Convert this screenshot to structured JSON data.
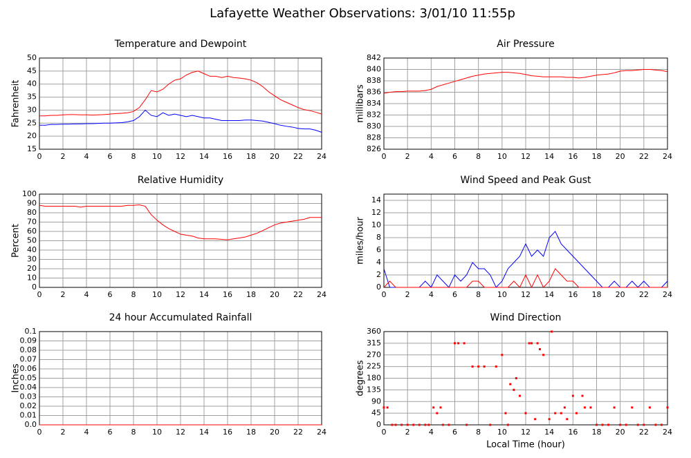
{
  "title": "Lafayette Weather Observations: 3/01/10 11:55p",
  "chart_data": [
    {
      "type": "line",
      "title": "Temperature and Dewpoint",
      "ylabel": "Fahrenheit",
      "x": [
        0,
        0.5,
        1,
        1.5,
        2,
        2.5,
        3,
        3.5,
        4,
        4.5,
        5,
        5.5,
        6,
        6.5,
        7,
        7.5,
        8,
        8.5,
        9,
        9.5,
        10,
        10.5,
        11,
        11.5,
        12,
        12.5,
        13,
        13.5,
        14,
        14.5,
        15,
        15.5,
        16,
        16.5,
        17,
        17.5,
        18,
        18.5,
        19,
        19.5,
        20,
        20.5,
        21,
        21.5,
        22,
        22.5,
        23,
        23.5,
        24
      ],
      "series": [
        {
          "color": "#ff0000",
          "values": [
            27.8,
            27.8,
            28,
            28,
            28.2,
            28.3,
            28.3,
            28.2,
            28.2,
            28.1,
            28.2,
            28.3,
            28.5,
            28.7,
            28.8,
            29,
            29.5,
            31,
            34,
            37.5,
            37,
            38,
            40,
            41.5,
            42,
            43.5,
            44.5,
            45,
            44,
            43,
            43,
            42.5,
            43,
            42.5,
            42.3,
            42,
            41.5,
            40.5,
            39,
            37,
            35.5,
            34,
            33,
            32,
            31,
            30.2,
            29.8,
            29.2,
            28.5
          ]
        },
        {
          "color": "#0000ff",
          "values": [
            24.2,
            24.2,
            24.5,
            24.5,
            24.6,
            24.6,
            24.7,
            24.7,
            24.8,
            24.8,
            24.9,
            25,
            25,
            25.1,
            25.2,
            25.5,
            26,
            27.5,
            30,
            28,
            27.5,
            29,
            28,
            28.5,
            28,
            27.5,
            28,
            27.5,
            27,
            27,
            26.5,
            26,
            26,
            26,
            26,
            26.2,
            26.2,
            26,
            25.8,
            25.3,
            24.8,
            24.2,
            23.8,
            23.5,
            23,
            22.8,
            22.8,
            22.3,
            21.5
          ]
        }
      ],
      "xlim": [
        0,
        24
      ],
      "xticks": [
        0,
        2,
        4,
        6,
        8,
        10,
        12,
        14,
        16,
        18,
        20,
        22,
        24
      ],
      "ylim": [
        15,
        50
      ],
      "yticks": [
        15,
        20,
        25,
        30,
        35,
        40,
        45,
        50
      ],
      "grid": true
    },
    {
      "type": "line",
      "title": "Air Pressure",
      "ylabel": "millibars",
      "x": [
        0,
        0.5,
        1,
        1.5,
        2,
        2.5,
        3,
        3.5,
        4,
        4.5,
        5,
        5.5,
        6,
        6.5,
        7,
        7.5,
        8,
        8.5,
        9,
        9.5,
        10,
        10.5,
        11,
        11.5,
        12,
        12.5,
        13,
        13.5,
        14,
        14.5,
        15,
        15.5,
        16,
        16.5,
        17,
        17.5,
        18,
        18.5,
        19,
        19.5,
        20,
        20.5,
        21,
        21.5,
        22,
        22.5,
        23,
        23.5,
        24
      ],
      "series": [
        {
          "color": "#ff0000",
          "values": [
            835.8,
            836,
            836.1,
            836.1,
            836.2,
            836.2,
            836.2,
            836.3,
            836.5,
            837,
            837.3,
            837.6,
            837.9,
            838.2,
            838.5,
            838.8,
            839,
            839.2,
            839.3,
            839.4,
            839.5,
            839.5,
            839.4,
            839.3,
            839.1,
            838.9,
            838.8,
            838.7,
            838.7,
            838.7,
            838.7,
            838.6,
            838.6,
            838.5,
            838.6,
            838.8,
            839,
            839.1,
            839.2,
            839.4,
            839.7,
            839.8,
            839.8,
            839.9,
            840,
            840,
            839.9,
            839.8,
            839.6
          ]
        }
      ],
      "xlim": [
        0,
        24
      ],
      "xticks": [
        0,
        2,
        4,
        6,
        8,
        10,
        12,
        14,
        16,
        18,
        20,
        22,
        24
      ],
      "ylim": [
        826,
        842
      ],
      "yticks": [
        826,
        828,
        830,
        832,
        834,
        836,
        838,
        840,
        842
      ],
      "grid": true
    },
    {
      "type": "line",
      "title": "Relative Humidity",
      "ylabel": "Percent",
      "x": [
        0,
        0.5,
        1,
        1.5,
        2,
        2.5,
        3,
        3.5,
        4,
        4.5,
        5,
        5.5,
        6,
        6.5,
        7,
        7.5,
        8,
        8.5,
        9,
        9.5,
        10,
        10.5,
        11,
        11.5,
        12,
        12.5,
        13,
        13.5,
        14,
        14.5,
        15,
        15.5,
        16,
        16.5,
        17,
        17.5,
        18,
        18.5,
        19,
        19.5,
        20,
        20.5,
        21,
        21.5,
        22,
        22.5,
        23,
        23.5,
        24
      ],
      "series": [
        {
          "color": "#ff0000",
          "values": [
            88,
            87,
            87,
            87,
            87,
            87,
            87,
            86,
            87,
            87,
            87,
            87,
            87,
            87,
            87,
            88,
            88,
            88.5,
            87,
            78,
            72,
            67,
            63,
            60,
            57,
            56,
            55,
            53,
            52,
            52,
            52,
            51.5,
            51,
            52,
            53,
            54,
            56,
            58,
            61,
            64,
            67,
            69,
            70,
            71,
            72,
            73,
            75,
            75,
            75
          ]
        }
      ],
      "xlim": [
        0,
        24
      ],
      "xticks": [
        0,
        2,
        4,
        6,
        8,
        10,
        12,
        14,
        16,
        18,
        20,
        22,
        24
      ],
      "ylim": [
        0,
        100
      ],
      "yticks": [
        0,
        10,
        20,
        30,
        40,
        50,
        60,
        70,
        80,
        90,
        100
      ],
      "grid": true
    },
    {
      "type": "line",
      "title": "Wind Speed and Peak Gust",
      "ylabel": "miles/hour",
      "x": [
        0,
        0.5,
        1,
        1.5,
        2,
        2.5,
        3,
        3.5,
        4,
        4.5,
        5,
        5.5,
        6,
        6.5,
        7,
        7.5,
        8,
        8.5,
        9,
        9.5,
        10,
        10.5,
        11,
        11.5,
        12,
        12.5,
        13,
        13.5,
        14,
        14.5,
        15,
        15.5,
        16,
        16.5,
        17,
        17.5,
        18,
        18.5,
        19,
        19.5,
        20,
        20.5,
        21,
        21.5,
        22,
        22.5,
        23,
        23.5,
        24
      ],
      "series": [
        {
          "color": "#0000ff",
          "values": [
            3,
            0,
            0,
            0,
            0,
            0,
            0,
            1,
            0,
            2,
            1,
            0,
            2,
            1,
            2,
            4,
            3,
            3,
            2,
            0,
            1,
            3,
            4,
            5,
            7,
            5,
            6,
            5,
            8,
            9,
            7,
            6,
            5,
            4,
            3,
            2,
            1,
            0,
            0,
            1,
            0,
            0,
            1,
            0,
            1,
            0,
            0,
            0,
            1
          ]
        },
        {
          "color": "#ff0000",
          "values": [
            0,
            1,
            0,
            0,
            0,
            0,
            0,
            0,
            0,
            0,
            0,
            0,
            0,
            0,
            0,
            1,
            1,
            0,
            0,
            0,
            0,
            0,
            1,
            0,
            2,
            0,
            2,
            0,
            1,
            3,
            2,
            1,
            1,
            0,
            0,
            0,
            0,
            0,
            0,
            0,
            0,
            0,
            0,
            0,
            0,
            0,
            0,
            0,
            0
          ]
        }
      ],
      "xlim": [
        0,
        24
      ],
      "xticks": [
        0,
        2,
        4,
        6,
        8,
        10,
        12,
        14,
        16,
        18,
        20,
        22,
        24
      ],
      "ylim": [
        0,
        15
      ],
      "yticks": [
        0,
        2,
        4,
        6,
        8,
        10,
        12,
        14
      ],
      "grid": true
    },
    {
      "type": "line",
      "title": "24 hour Accumulated Rainfall",
      "ylabel": "Inches",
      "x": [
        0,
        24
      ],
      "series": [
        {
          "color": "#ff0000",
          "values": [
            0,
            0
          ]
        }
      ],
      "xlim": [
        0,
        24
      ],
      "xticks": [
        0,
        2,
        4,
        6,
        8,
        10,
        12,
        14,
        16,
        18,
        20,
        22,
        24
      ],
      "ylim": [
        0,
        0.1
      ],
      "yticks": [
        {
          "value": 0,
          "label": "0.0"
        },
        0.01,
        0.02,
        0.03,
        0.04,
        0.05,
        0.06,
        0.07,
        0.08,
        0.09,
        0.1
      ],
      "grid": true
    },
    {
      "type": "scatter",
      "title": "Wind Direction",
      "ylabel": "degrees",
      "xlabel": "Local Time (hour)",
      "x": [
        0,
        0.3,
        0.7,
        1,
        1.5,
        2,
        2.5,
        3,
        3.5,
        3.8,
        4.2,
        4.5,
        4.8,
        5,
        5.5,
        6,
        6.3,
        6.8,
        7,
        7.5,
        8,
        8.5,
        9,
        9.5,
        10,
        10.3,
        10.5,
        10.7,
        11,
        11.2,
        11.5,
        12,
        12.3,
        12.5,
        12.8,
        13,
        13.2,
        13.5,
        14,
        14.2,
        14.5,
        15,
        15.3,
        15.5,
        16,
        16.3,
        16.8,
        17,
        17.5,
        18,
        18.5,
        19,
        19.5,
        20,
        20.5,
        21,
        21.5,
        22,
        22.5,
        23,
        23.5,
        24
      ],
      "series": [
        {
          "color": "#ff0000",
          "values": [
            67,
            67,
            0,
            0,
            0,
            0,
            0,
            0,
            0,
            0,
            67,
            45,
            67,
            0,
            0,
            315,
            315,
            315,
            0,
            225,
            225,
            225,
            0,
            225,
            270,
            45,
            0,
            157,
            135,
            180,
            112,
            45,
            315,
            315,
            22,
            315,
            292,
            270,
            22,
            360,
            45,
            45,
            67,
            22,
            112,
            45,
            112,
            67,
            67,
            0,
            0,
            0,
            67,
            0,
            0,
            67,
            0,
            0,
            67,
            0,
            0,
            67
          ]
        }
      ],
      "xlim": [
        0,
        24
      ],
      "xticks": [
        0,
        2,
        4,
        6,
        8,
        10,
        12,
        14,
        16,
        18,
        20,
        22,
        24
      ],
      "ylim": [
        0,
        360
      ],
      "yticks": [
        0,
        45,
        90,
        135,
        180,
        225,
        270,
        315,
        360
      ],
      "grid": true
    }
  ]
}
